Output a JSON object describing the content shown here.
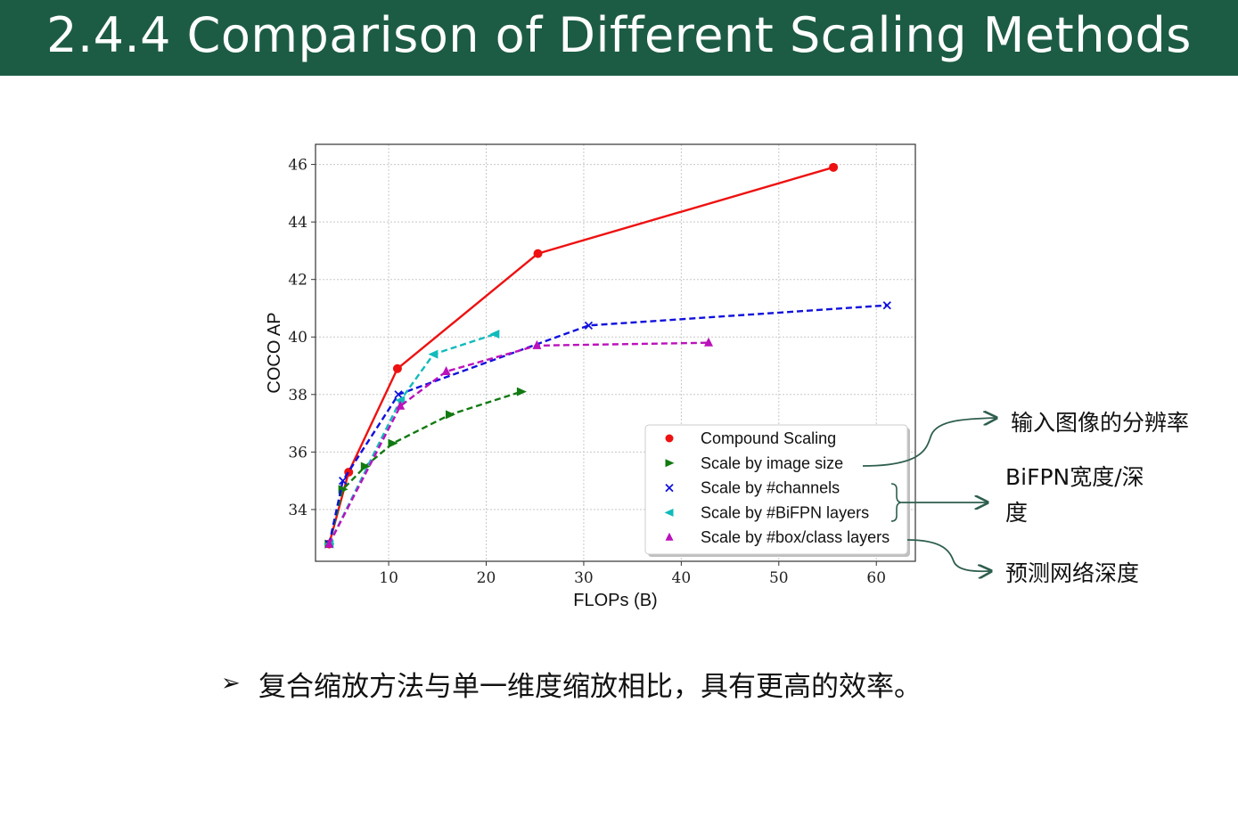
{
  "slide": {
    "title": "2.4.4 Comparison of Different Scaling Methods",
    "bullet_marker": "➢",
    "bullet_text": "复合缩放方法与单一维度缩放相比，具有更高的效率。"
  },
  "annotations": {
    "image_resolution": "输入图像的分辨率",
    "bifpn_line1": "BiFPN宽度/深",
    "bifpn_line2": "度",
    "prediction_depth": "预测网络深度",
    "arrow_color": "#2e5e4e"
  },
  "chart_data": {
    "type": "line",
    "xlabel": "FLOPs (B)",
    "ylabel": "COCO AP",
    "xlim": [
      2.5,
      64
    ],
    "ylim": [
      32.2,
      46.7
    ],
    "xticks": [
      10,
      20,
      30,
      40,
      50,
      60
    ],
    "yticks": [
      34,
      36,
      38,
      40,
      42,
      44,
      46
    ],
    "grid": true,
    "legend_position": "lower-right",
    "series": [
      {
        "name": "Compound Scaling",
        "color": "#ee1111",
        "marker": "circle",
        "dash": false,
        "x": [
          3.9,
          5.9,
          10.9,
          25.3,
          55.6
        ],
        "y": [
          32.8,
          35.3,
          38.9,
          42.9,
          45.9
        ]
      },
      {
        "name": "Scale by image size",
        "color": "#117a11",
        "marker": "triangle-right",
        "dash": true,
        "x": [
          3.9,
          5.3,
          7.6,
          10.4,
          16.3,
          23.6
        ],
        "y": [
          32.8,
          34.7,
          35.5,
          36.3,
          37.3,
          38.1
        ]
      },
      {
        "name": "Scale by #channels",
        "color": "#1111dd",
        "marker": "x",
        "dash": true,
        "x": [
          3.9,
          5.3,
          11.0,
          30.5,
          61.1
        ],
        "y": [
          32.8,
          35.0,
          38.0,
          40.4,
          41.1
        ]
      },
      {
        "name": "Scale by #BiFPN layers",
        "color": "#11bbbb",
        "marker": "triangle-left",
        "dash": true,
        "x": [
          3.9,
          11.2,
          14.6,
          20.9
        ],
        "y": [
          32.8,
          37.8,
          39.4,
          40.1
        ]
      },
      {
        "name": "Scale by #box/class layers",
        "color": "#bb11bb",
        "marker": "triangle-up",
        "dash": true,
        "x": [
          3.9,
          11.2,
          15.9,
          25.2,
          42.8
        ],
        "y": [
          32.8,
          37.6,
          38.8,
          39.7,
          39.8
        ]
      }
    ]
  }
}
